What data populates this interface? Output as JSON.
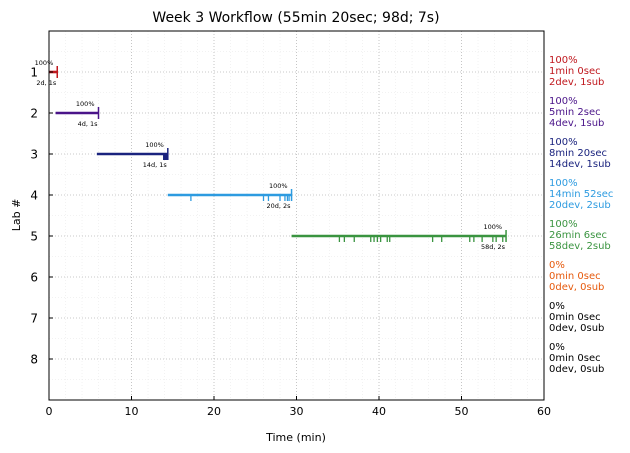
{
  "chart_data": {
    "type": "line",
    "title": "Week 3 Workflow (55min 20sec; 98d; 7s)",
    "xlabel": "Time (min)",
    "ylabel": "Lab #",
    "xlim": [
      0,
      60
    ],
    "ylim": [
      0,
      9
    ],
    "x_ticks": [
      "0",
      "10",
      "20",
      "30",
      "40",
      "50",
      "60"
    ],
    "y_ticks": [
      "1",
      "2",
      "3",
      "4",
      "5",
      "6",
      "7",
      "8"
    ],
    "grid": true,
    "labs": [
      {
        "lab": 1,
        "color": "#c0181e",
        "start": 0.0,
        "end": 1.0,
        "pct_label": "100%",
        "end_label": "2d, 1s",
        "side": [
          "100%",
          "1min 0sec",
          "2dev, 1sub"
        ],
        "marks": []
      },
      {
        "lab": 2,
        "color": "#4a1489",
        "start": 0.8,
        "end": 6.0,
        "pct_label": "100%",
        "end_label": "4d, 1s",
        "side": [
          "100%",
          "5min 2sec",
          "4dev, 1sub"
        ],
        "marks": []
      },
      {
        "lab": 3,
        "color": "#1a237e",
        "start": 5.8,
        "end": 14.4,
        "pct_label": "100%",
        "end_label": "14d, 1s",
        "side": [
          "100%",
          "8min 20sec",
          "14dev, 1sub"
        ],
        "marks": [
          13.9,
          14.0,
          14.1,
          14.2,
          14.3
        ]
      },
      {
        "lab": 4,
        "color": "#2d9be0",
        "start": 14.4,
        "end": 29.4,
        "pct_label": "100%",
        "end_label": "20d, 2s",
        "side": [
          "100%",
          "14min 52sec",
          "20dev, 2sub"
        ],
        "marks": [
          17.2,
          26.0,
          26.6,
          28.0,
          28.6,
          28.9,
          29.1
        ]
      },
      {
        "lab": 5,
        "color": "#3a9440",
        "start": 29.4,
        "end": 55.4,
        "pct_label": "100%",
        "end_label": "58d, 2s",
        "side": [
          "100%",
          "26min 6sec",
          "58dev, 2sub"
        ],
        "marks": [
          35.2,
          35.8,
          37.0,
          39.0,
          39.4,
          39.8,
          40.2,
          41.0,
          41.3,
          46.5,
          47.6,
          51.0,
          51.5,
          52.5,
          53.8,
          54.2,
          55.0
        ]
      },
      {
        "lab": 6,
        "color": "#e65a0d",
        "start": null,
        "end": null,
        "pct_label": "",
        "end_label": "",
        "side": [
          "0%",
          "0min 0sec",
          "0dev, 0sub"
        ],
        "marks": []
      },
      {
        "lab": 7,
        "color": "#000000",
        "start": null,
        "end": null,
        "pct_label": "",
        "end_label": "",
        "side": [
          "0%",
          "0min 0sec",
          "0dev, 0sub"
        ],
        "marks": []
      },
      {
        "lab": 8,
        "color": "#000000",
        "start": null,
        "end": null,
        "pct_label": "",
        "end_label": "",
        "side": [
          "0%",
          "0min 0sec",
          "0dev, 0sub"
        ],
        "marks": []
      }
    ]
  }
}
